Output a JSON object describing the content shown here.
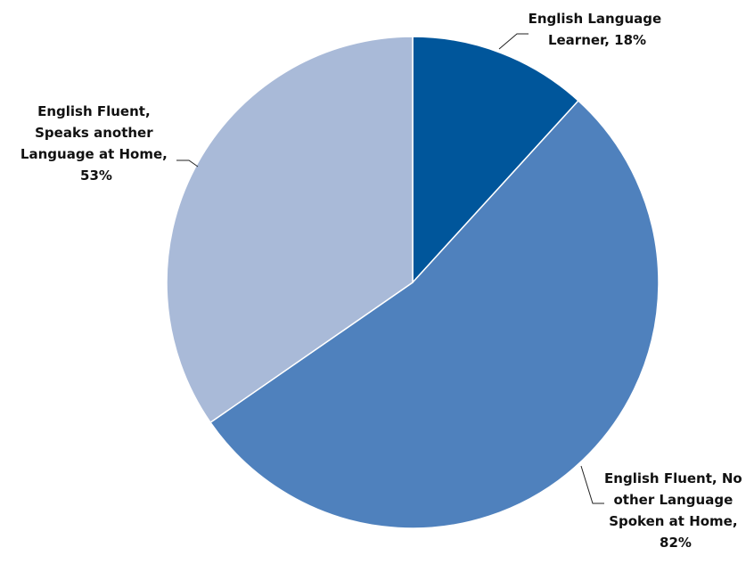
{
  "chart_data": {
    "type": "pie",
    "title": "",
    "slices": [
      {
        "label_lines": [
          "English Language",
          "Learner, 18%"
        ],
        "value": 18,
        "color": "#00569B"
      },
      {
        "label_lines": [
          "English Fluent, No",
          "other Language",
          "Spoken at Home,",
          "82%"
        ],
        "value": 82,
        "color": "#4F81BD"
      },
      {
        "label_lines": [
          "English Fluent,",
          "Speaks another",
          "Language at Home,",
          "53%"
        ],
        "value": 53,
        "color": "#A9BAD8"
      }
    ],
    "start_angle": "12 o'clock",
    "direction": "clockwise",
    "slice_border_color": "#FFFFFF"
  }
}
